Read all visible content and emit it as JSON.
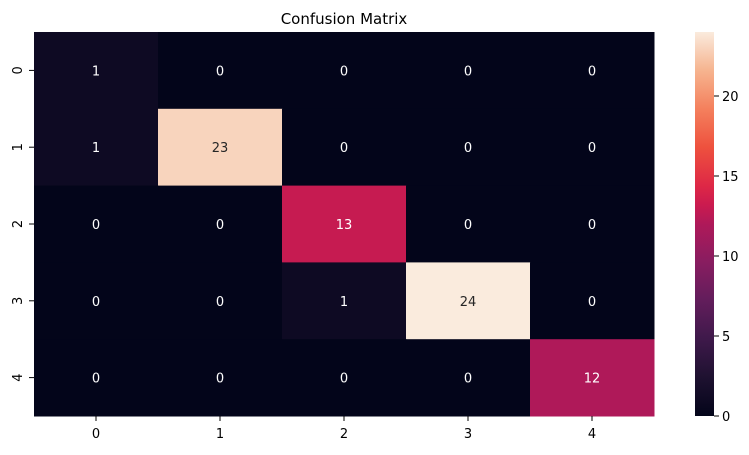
{
  "chart_data": {
    "type": "heatmap",
    "title": "Confusion Matrix",
    "xlabel": "",
    "ylabel": "",
    "x_categories": [
      "0",
      "1",
      "2",
      "3",
      "4"
    ],
    "y_categories": [
      "0",
      "1",
      "2",
      "3",
      "4"
    ],
    "values": [
      [
        1,
        0,
        0,
        0,
        0
      ],
      [
        1,
        23,
        0,
        0,
        0
      ],
      [
        0,
        0,
        13,
        0,
        0
      ],
      [
        0,
        0,
        1,
        24,
        0
      ],
      [
        0,
        0,
        0,
        0,
        12
      ]
    ],
    "annotations": true,
    "colormap": "rocket",
    "colorbar": {
      "min": 0,
      "max": 24,
      "ticks": [
        0,
        5,
        10,
        15,
        20
      ],
      "position": "right"
    },
    "grid": false
  }
}
